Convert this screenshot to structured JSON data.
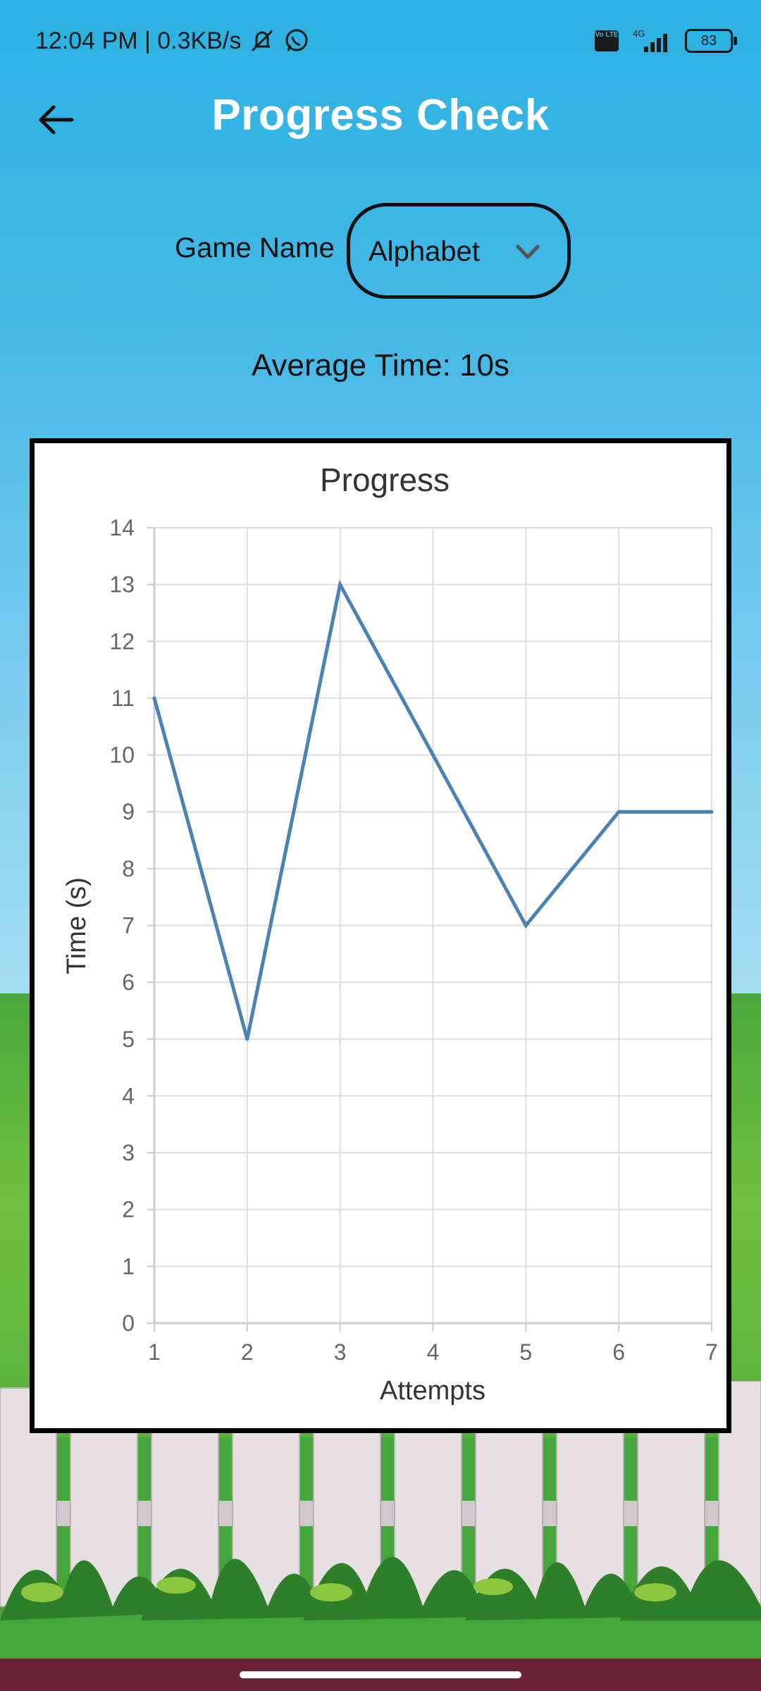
{
  "status_bar": {
    "time_speed": "12:04 PM | 0.3KB/s",
    "volte_label": "Vo LTE",
    "network_label": "4G",
    "battery": "83",
    "icons": [
      "muted-bell-icon",
      "whatsapp-icon",
      "signal-icon"
    ]
  },
  "header": {
    "back_icon": "arrow-left-icon",
    "title": "Progress Check"
  },
  "game": {
    "label": "Game Name",
    "selected": "Alphabet",
    "dropdown_icon": "chevron-down-icon"
  },
  "average_time": "Average Time: 10s",
  "chart_data": {
    "type": "line",
    "title": "Progress",
    "xlabel": "Attempts",
    "ylabel": "Time (s)",
    "x": [
      1,
      2,
      3,
      4,
      5,
      6,
      7
    ],
    "series": [
      {
        "values": [
          11,
          5,
          13,
          10,
          7,
          9,
          9
        ]
      }
    ],
    "xlim": [
      1,
      7
    ],
    "ylim": [
      0,
      14
    ],
    "x_ticks": [
      "1",
      "2",
      "3",
      "4",
      "5",
      "6",
      "7"
    ],
    "y_ticks": [
      "0",
      "1",
      "2",
      "3",
      "4",
      "5",
      "6",
      "7",
      "8",
      "9",
      "10",
      "11",
      "12",
      "13",
      "14"
    ],
    "grid": true,
    "line_color": "#4a82b4"
  },
  "colors": {
    "sky": "#2bb1e2",
    "grass": "#5bb33d",
    "nav_bar": "#6b2136"
  }
}
